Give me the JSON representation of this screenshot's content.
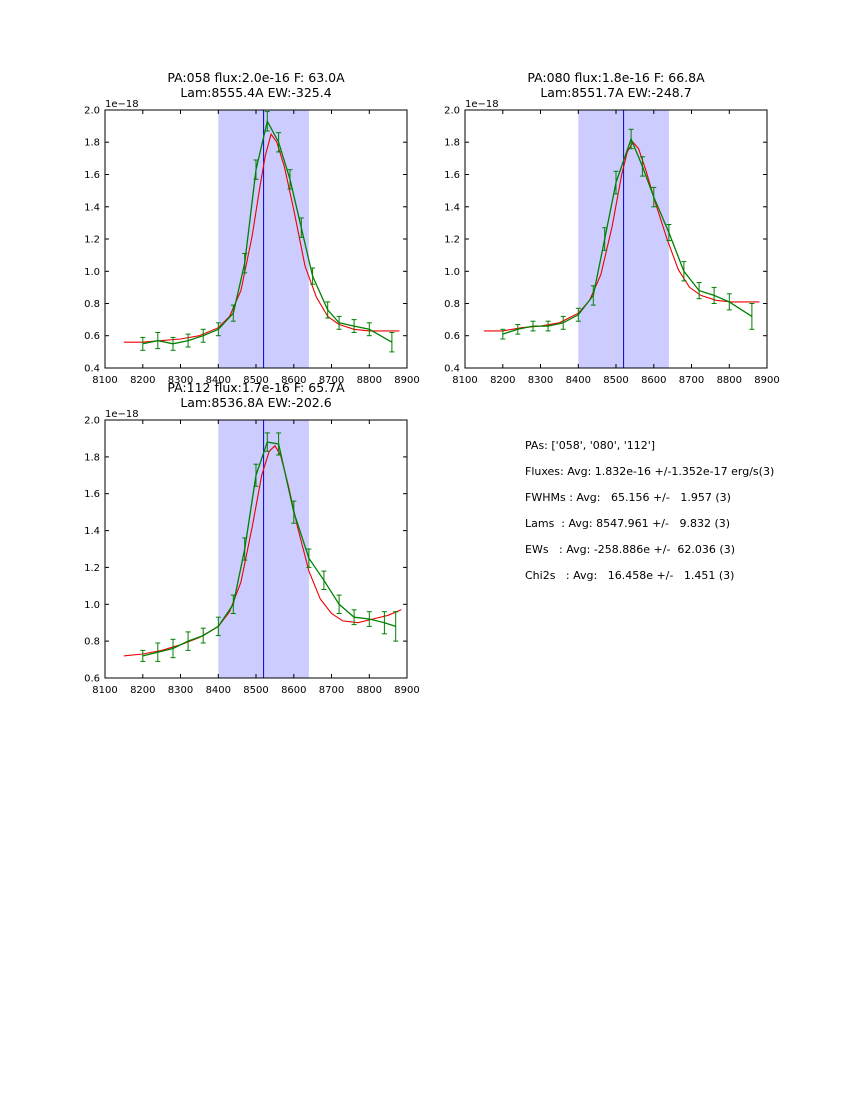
{
  "figure": {
    "background": "#ffffff",
    "band_color": "#ccccff",
    "vline_color": "#0000cd",
    "data_color": "#008000",
    "fit_color": "#ee0000"
  },
  "stats_panel": {
    "lines": [
      "PAs: ['058', '080', '112']",
      "Fluxes: Avg: 1.832e-16 +/-1.352e-17 erg/s(3)",
      "FWHMs : Avg:   65.156 +/-   1.957 (3)",
      "Lams  : Avg: 8547.961 +/-   9.832 (3)",
      "EWs   : Avg: -258.886e +/-  62.036 (3)",
      "Chi2s   : Avg:   16.458e +/-   1.451 (3)"
    ]
  },
  "chart_data": [
    {
      "type": "line",
      "title1": "PA:058 flux:2.0e-16 F: 63.0A",
      "title2": "Lam:8555.4A EW:-325.4",
      "offset_label": "1e−18",
      "xlim": [
        8100,
        8900
      ],
      "ylim": [
        0.4,
        2.0
      ],
      "xticks": [
        8100,
        8200,
        8300,
        8400,
        8500,
        8600,
        8700,
        8800,
        8900
      ],
      "xtick_labels": [
        "8100",
        "8200",
        "8300",
        "8400",
        "8500",
        "8600",
        "8700",
        "8800",
        "8900"
      ],
      "yticks": [
        0.4,
        0.6,
        0.8,
        1.0,
        1.2,
        1.4,
        1.6,
        1.8,
        2.0
      ],
      "ytick_labels": [
        "0.4",
        "0.6",
        "0.8",
        "1.0",
        "1.2",
        "1.4",
        "1.6",
        "1.8",
        "2.0"
      ],
      "band": {
        "from": 8400,
        "to": 8640,
        "color": "#ccccff"
      },
      "vline": {
        "x": 8520,
        "color": "#0000cd"
      },
      "series": [
        {
          "name": "fit",
          "color": "#ee0000",
          "x": [
            8150,
            8200,
            8250,
            8300,
            8350,
            8400,
            8430,
            8460,
            8490,
            8510,
            8525,
            8540,
            8555,
            8575,
            8600,
            8630,
            8660,
            8690,
            8720,
            8760,
            8800,
            8850,
            8880
          ],
          "y": [
            0.56,
            0.56,
            0.57,
            0.58,
            0.6,
            0.65,
            0.72,
            0.88,
            1.22,
            1.52,
            1.72,
            1.85,
            1.8,
            1.65,
            1.38,
            1.03,
            0.84,
            0.72,
            0.67,
            0.64,
            0.63,
            0.63,
            0.63
          ]
        },
        {
          "name": "data",
          "color": "#008000",
          "x": [
            8200,
            8240,
            8280,
            8320,
            8360,
            8400,
            8440,
            8470,
            8500,
            8530,
            8560,
            8590,
            8620,
            8650,
            8690,
            8720,
            8760,
            8800,
            8860
          ],
          "y": [
            0.55,
            0.57,
            0.55,
            0.57,
            0.6,
            0.64,
            0.74,
            1.05,
            1.63,
            1.93,
            1.8,
            1.57,
            1.27,
            0.97,
            0.76,
            0.68,
            0.66,
            0.64,
            0.56
          ],
          "yerr": [
            0.04,
            0.05,
            0.04,
            0.04,
            0.04,
            0.04,
            0.05,
            0.06,
            0.06,
            0.06,
            0.06,
            0.06,
            0.06,
            0.05,
            0.05,
            0.04,
            0.04,
            0.04,
            0.06
          ]
        }
      ]
    },
    {
      "type": "line",
      "title1": "PA:080 flux:1.8e-16 F: 66.8A",
      "title2": "Lam:8551.7A EW:-248.7",
      "offset_label": "1e−18",
      "xlim": [
        8100,
        8900
      ],
      "ylim": [
        0.4,
        2.0
      ],
      "xticks": [
        8100,
        8200,
        8300,
        8400,
        8500,
        8600,
        8700,
        8800,
        8900
      ],
      "xtick_labels": [
        "8100",
        "8200",
        "8300",
        "8400",
        "8500",
        "8600",
        "8700",
        "8800",
        "8900"
      ],
      "yticks": [
        0.4,
        0.6,
        0.8,
        1.0,
        1.2,
        1.4,
        1.6,
        1.8,
        2.0
      ],
      "ytick_labels": [
        "0.4",
        "0.6",
        "0.8",
        "1.0",
        "1.2",
        "1.4",
        "1.6",
        "1.8",
        "2.0"
      ],
      "band": {
        "from": 8400,
        "to": 8640,
        "color": "#ccccff"
      },
      "vline": {
        "x": 8520,
        "color": "#0000cd"
      },
      "series": [
        {
          "name": "fit",
          "color": "#ee0000",
          "x": [
            8150,
            8200,
            8250,
            8300,
            8350,
            8400,
            8430,
            8460,
            8490,
            8515,
            8530,
            8545,
            8560,
            8580,
            8605,
            8635,
            8665,
            8695,
            8725,
            8765,
            8805,
            8850,
            8880
          ],
          "y": [
            0.63,
            0.63,
            0.65,
            0.66,
            0.68,
            0.74,
            0.82,
            0.98,
            1.28,
            1.6,
            1.74,
            1.8,
            1.76,
            1.62,
            1.42,
            1.2,
            1.01,
            0.9,
            0.85,
            0.82,
            0.81,
            0.81,
            0.81
          ]
        },
        {
          "name": "data",
          "color": "#008000",
          "x": [
            8200,
            8240,
            8280,
            8320,
            8360,
            8400,
            8440,
            8470,
            8500,
            8540,
            8570,
            8600,
            8640,
            8680,
            8720,
            8760,
            8800,
            8860
          ],
          "y": [
            0.61,
            0.64,
            0.66,
            0.66,
            0.68,
            0.73,
            0.85,
            1.2,
            1.55,
            1.82,
            1.65,
            1.46,
            1.24,
            1.0,
            0.88,
            0.85,
            0.81,
            0.72
          ],
          "yerr": [
            0.03,
            0.03,
            0.03,
            0.03,
            0.04,
            0.04,
            0.06,
            0.07,
            0.07,
            0.06,
            0.06,
            0.06,
            0.05,
            0.06,
            0.05,
            0.05,
            0.05,
            0.08
          ]
        }
      ]
    },
    {
      "type": "line",
      "title1": "PA:112 flux:1.7e-16 F: 65.7A",
      "title2": "Lam:8536.8A EW:-202.6",
      "offset_label": "1e−18",
      "xlim": [
        8100,
        8900
      ],
      "ylim": [
        0.6,
        2.0
      ],
      "xticks": [
        8100,
        8200,
        8300,
        8400,
        8500,
        8600,
        8700,
        8800,
        8900
      ],
      "xtick_labels": [
        "8100",
        "8200",
        "8300",
        "8400",
        "8500",
        "8600",
        "8700",
        "8800",
        "8900"
      ],
      "yticks": [
        0.6,
        0.8,
        1.0,
        1.2,
        1.4,
        1.6,
        1.8,
        2.0
      ],
      "ytick_labels": [
        "0.6",
        "0.8",
        "1.0",
        "1.2",
        "1.4",
        "1.6",
        "1.8",
        "2.0"
      ],
      "band": {
        "from": 8400,
        "to": 8640,
        "color": "#ccccff"
      },
      "vline": {
        "x": 8520,
        "color": "#0000cd"
      },
      "series": [
        {
          "name": "fit",
          "color": "#ee0000",
          "x": [
            8150,
            8200,
            8250,
            8300,
            8350,
            8400,
            8430,
            8460,
            8490,
            8515,
            8535,
            8550,
            8565,
            8585,
            8610,
            8640,
            8670,
            8700,
            8730,
            8770,
            8810,
            8850,
            8885
          ],
          "y": [
            0.72,
            0.73,
            0.75,
            0.78,
            0.82,
            0.88,
            0.96,
            1.12,
            1.42,
            1.7,
            1.83,
            1.86,
            1.81,
            1.65,
            1.42,
            1.18,
            1.03,
            0.95,
            0.91,
            0.9,
            0.92,
            0.94,
            0.97
          ]
        },
        {
          "name": "data",
          "color": "#008000",
          "x": [
            8200,
            8240,
            8280,
            8320,
            8360,
            8400,
            8440,
            8470,
            8500,
            8530,
            8560,
            8600,
            8640,
            8680,
            8720,
            8760,
            8800,
            8840,
            8870
          ],
          "y": [
            0.72,
            0.74,
            0.76,
            0.8,
            0.83,
            0.88,
            1.0,
            1.3,
            1.7,
            1.88,
            1.87,
            1.5,
            1.25,
            1.13,
            1.0,
            0.93,
            0.92,
            0.9,
            0.88
          ],
          "yerr": [
            0.03,
            0.05,
            0.05,
            0.05,
            0.04,
            0.05,
            0.05,
            0.06,
            0.06,
            0.05,
            0.06,
            0.06,
            0.05,
            0.05,
            0.05,
            0.04,
            0.04,
            0.06,
            0.08
          ]
        }
      ]
    }
  ]
}
